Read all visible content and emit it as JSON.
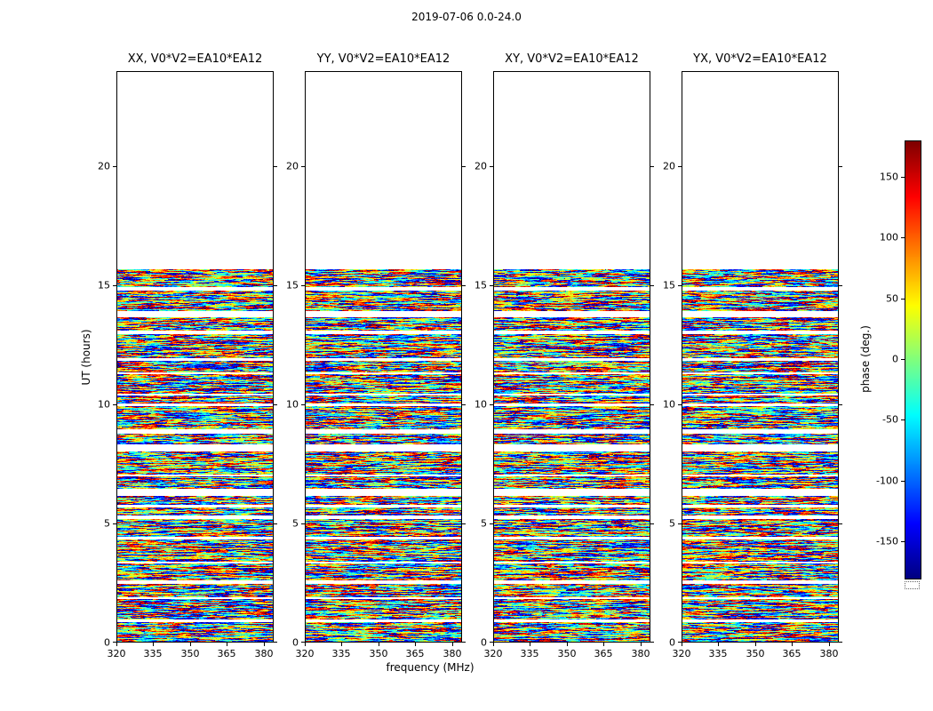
{
  "figure": {
    "suptitle": "2019-07-06 0.0-24.0",
    "xlabel": "frequency (MHz)",
    "ylabel": "UT (hours)",
    "colorbar_label": "phase (deg.)"
  },
  "chart_data": {
    "type": "heatmap",
    "title": "2019-07-06 0.0-24.0",
    "xlabel": "frequency (MHz)",
    "ylabel": "UT (hours)",
    "panels": [
      {
        "title": "XX, V0*V2=EA10*EA12"
      },
      {
        "title": "YY, V0*V2=EA10*EA12"
      },
      {
        "title": "XY, V0*V2=EA10*EA12"
      },
      {
        "title": "YX, V0*V2=EA10*EA12"
      }
    ],
    "x_ticks": [
      320,
      335,
      350,
      365,
      380
    ],
    "x_range": [
      320,
      384
    ],
    "y_ticks": [
      0,
      5,
      10,
      15,
      20
    ],
    "y_range": [
      0,
      24
    ],
    "data_time_coverage_hours": [
      0,
      15.7
    ],
    "data_description": "Visibility phase noise (-180 to 180 deg) vs frequency and time; data present from 0 to ~15.7 UT hours in horizontal scan blocks separated by thin white time gaps; blank (white) above ~15.7 hours.",
    "colormap": "jet",
    "colorbar": {
      "label": "phase (deg.)",
      "ticks": [
        150,
        100,
        50,
        0,
        -50,
        -100,
        -150
      ],
      "range": [
        -180,
        180
      ]
    },
    "grid": false,
    "legend": "none"
  }
}
